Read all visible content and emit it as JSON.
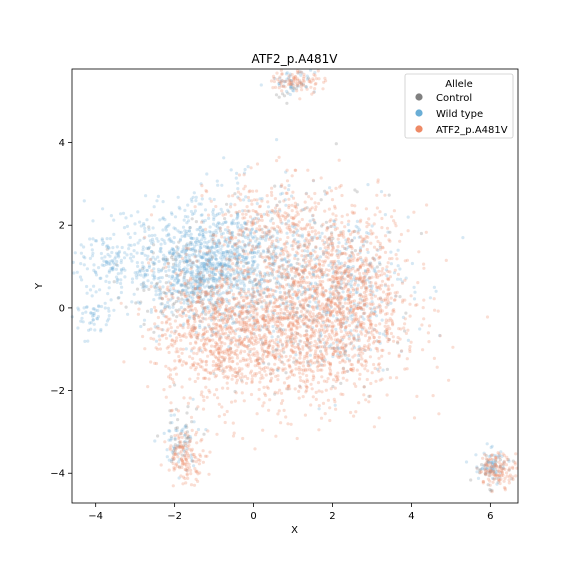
{
  "chart_data": {
    "type": "scatter",
    "title": "ATF2_p.A481V",
    "xlabel": "X",
    "ylabel": "Y",
    "xlim": [
      -4.6,
      6.7
    ],
    "ylim": [
      -4.72,
      5.78
    ],
    "xticks": [
      -4,
      -2,
      0,
      2,
      4,
      6
    ],
    "yticks": [
      -4,
      -2,
      0,
      2,
      4
    ],
    "grid": false,
    "legend": {
      "title": "Allele",
      "placement": "top-right",
      "entries": [
        "Control",
        "Wild type",
        "ATF2_p.A481V"
      ]
    },
    "series": [
      {
        "name": "Control",
        "color": "#808080",
        "clusters": [
          {
            "cx": 0.8,
            "cy": 0.4,
            "sx": 1.3,
            "sy": 1.2,
            "n": 260
          },
          {
            "cx": -1.8,
            "cy": 0.6,
            "sx": 0.7,
            "sy": 0.5,
            "n": 120
          },
          {
            "cx": 6.0,
            "cy": -3.9,
            "sx": 0.2,
            "sy": 0.2,
            "n": 40
          },
          {
            "cx": -1.9,
            "cy": -3.2,
            "sx": 0.25,
            "sy": 0.45,
            "n": 40
          },
          {
            "cx": 1.0,
            "cy": 5.4,
            "sx": 0.3,
            "sy": 0.2,
            "n": 20
          }
        ]
      },
      {
        "name": "Wild type",
        "color": "#6aaed6",
        "clusters": [
          {
            "cx": -1.4,
            "cy": 1.0,
            "sx": 0.9,
            "sy": 0.6,
            "n": 700
          },
          {
            "cx": -0.5,
            "cy": 1.1,
            "sx": 0.9,
            "sy": 0.9,
            "n": 500
          },
          {
            "cx": 2.0,
            "cy": 0.5,
            "sx": 1.0,
            "sy": 1.0,
            "n": 400
          },
          {
            "cx": -3.5,
            "cy": 1.1,
            "sx": 0.5,
            "sy": 0.5,
            "n": 150
          },
          {
            "cx": -4.1,
            "cy": -0.2,
            "sx": 0.25,
            "sy": 0.25,
            "n": 50
          },
          {
            "cx": -1.9,
            "cy": -3.3,
            "sx": 0.25,
            "sy": 0.4,
            "n": 50
          },
          {
            "cx": 6.0,
            "cy": -3.8,
            "sx": 0.2,
            "sy": 0.2,
            "n": 60
          },
          {
            "cx": 1.0,
            "cy": 5.5,
            "sx": 0.3,
            "sy": 0.15,
            "n": 40
          }
        ]
      },
      {
        "name": "ATF2_p.A481V",
        "color": "#ee8a66",
        "clusters": [
          {
            "cx": 1.3,
            "cy": -0.4,
            "sx": 1.2,
            "sy": 1.0,
            "n": 1400
          },
          {
            "cx": -1.0,
            "cy": -0.6,
            "sx": 0.8,
            "sy": 0.8,
            "n": 700
          },
          {
            "cx": 2.5,
            "cy": 0.6,
            "sx": 0.8,
            "sy": 0.9,
            "n": 500
          },
          {
            "cx": 0.5,
            "cy": 2.0,
            "sx": 0.8,
            "sy": 0.6,
            "n": 300
          },
          {
            "cx": -1.7,
            "cy": -3.6,
            "sx": 0.25,
            "sy": 0.3,
            "n": 130
          },
          {
            "cx": 6.2,
            "cy": -3.9,
            "sx": 0.25,
            "sy": 0.2,
            "n": 120
          },
          {
            "cx": 1.1,
            "cy": 5.5,
            "sx": 0.35,
            "sy": 0.15,
            "n": 90
          }
        ]
      }
    ]
  }
}
